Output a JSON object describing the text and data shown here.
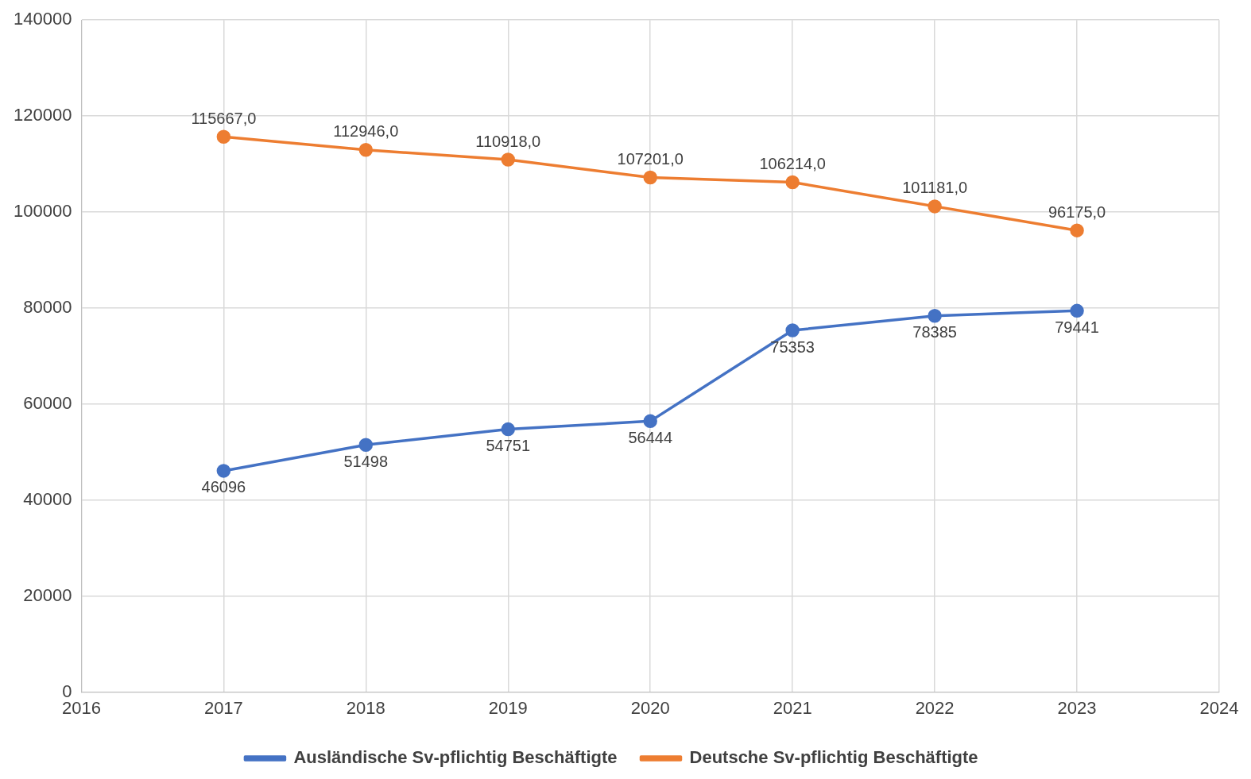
{
  "chart_data": {
    "type": "line",
    "x": [
      2017,
      2018,
      2019,
      2020,
      2021,
      2022,
      2023
    ],
    "series": [
      {
        "name": "Ausländische Sv-pflichtig Beschäftigte",
        "color": "#4472c4",
        "values": [
          46096,
          51498,
          54751,
          56444,
          75353,
          78385,
          79441
        ],
        "value_labels": [
          "46096",
          "51498",
          "54751",
          "56444",
          "75353",
          "78385",
          "79441"
        ]
      },
      {
        "name": "Deutsche Sv-pflichtig Beschäftigte",
        "color": "#ed7d31",
        "values": [
          115667,
          112946,
          110918,
          107201,
          106214,
          101181,
          96175
        ],
        "value_labels": [
          "115667,0",
          "112946,0",
          "110918,0",
          "107201,0",
          "106214,0",
          "101181,0",
          "96175,0"
        ]
      }
    ],
    "xlim": [
      2016,
      2024
    ],
    "xticks": [
      2016,
      2017,
      2018,
      2019,
      2020,
      2021,
      2022,
      2023,
      2024
    ],
    "ylim": [
      0,
      140000
    ],
    "yticks": [
      0,
      20000,
      40000,
      60000,
      80000,
      100000,
      120000,
      140000
    ],
    "grid": true,
    "legend": "bottom",
    "marker": "circle",
    "line_style": "solid"
  }
}
